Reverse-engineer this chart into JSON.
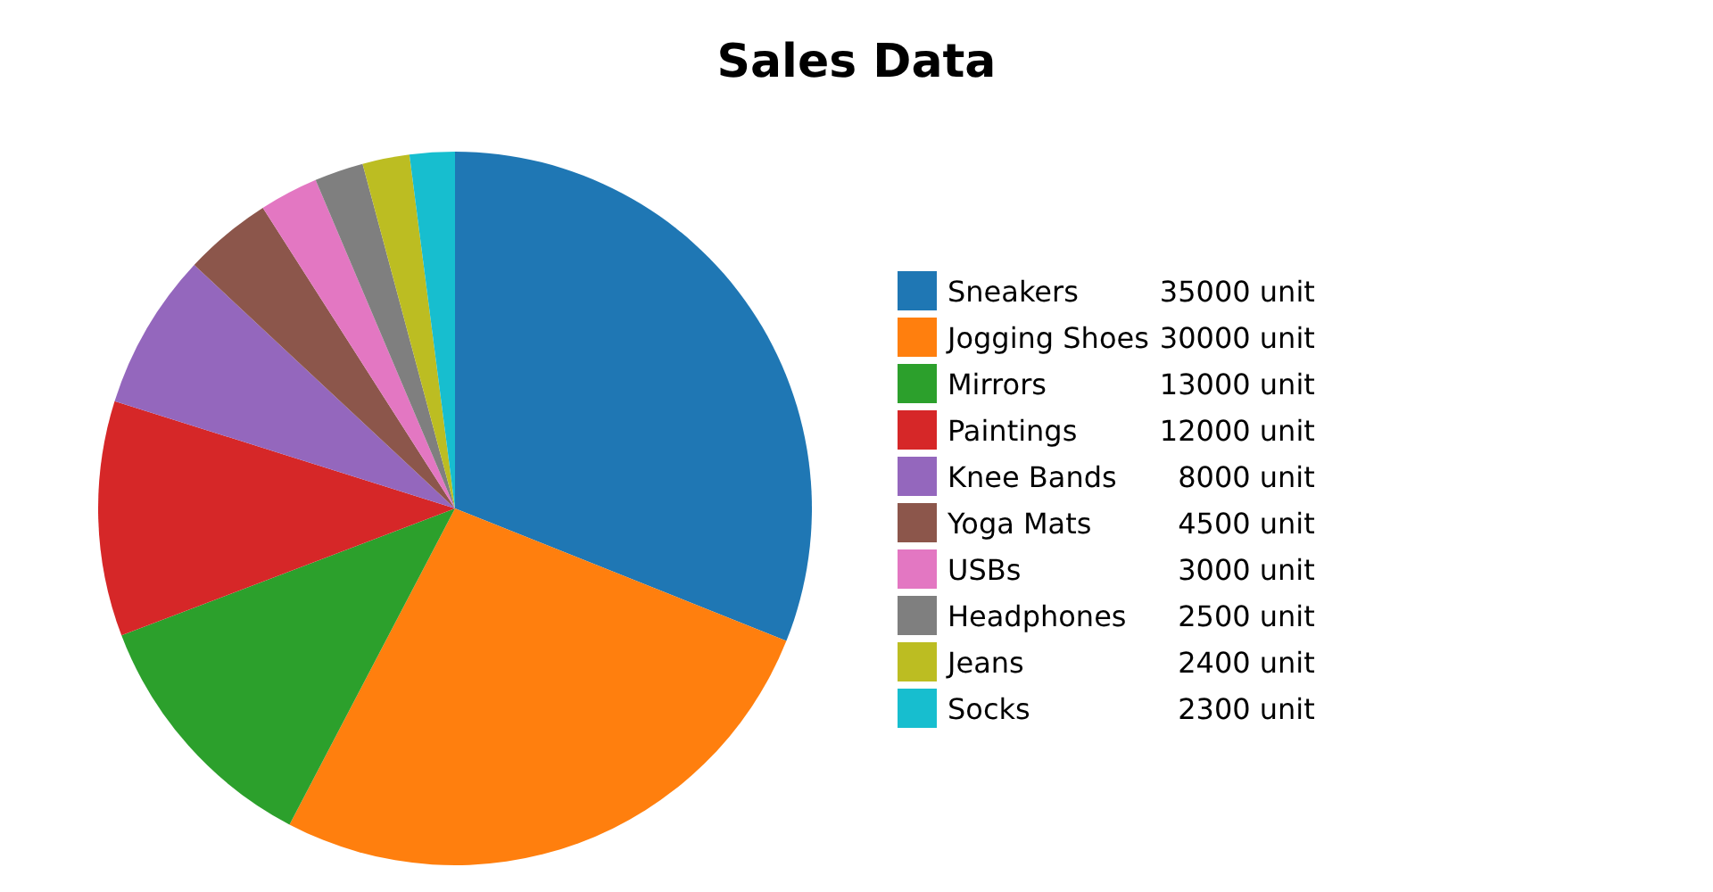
{
  "chart_data": {
    "type": "pie",
    "title": "Sales Data",
    "categories": [
      "Sneakers",
      "Jogging Shoes",
      "Mirrors",
      "Paintings",
      "Knee Bands",
      "Yoga Mats",
      "USBs",
      "Headphones",
      "Jeans",
      "Socks"
    ],
    "values": [
      35000,
      30000,
      13000,
      12000,
      8000,
      4500,
      3000,
      2500,
      2400,
      2300
    ],
    "value_labels": [
      "35000 unit",
      "30000 unit",
      "13000 unit",
      "12000 unit",
      "8000 unit",
      "4500 unit",
      "3000 unit",
      "2500 unit",
      "2400 unit",
      "2300 unit"
    ],
    "colors": [
      "#1f77b4",
      "#ff7f0e",
      "#2ca02c",
      "#d62728",
      "#9467bd",
      "#8c564b",
      "#e377c2",
      "#7f7f7f",
      "#bcbd22",
      "#17becf"
    ],
    "legend": "right"
  }
}
